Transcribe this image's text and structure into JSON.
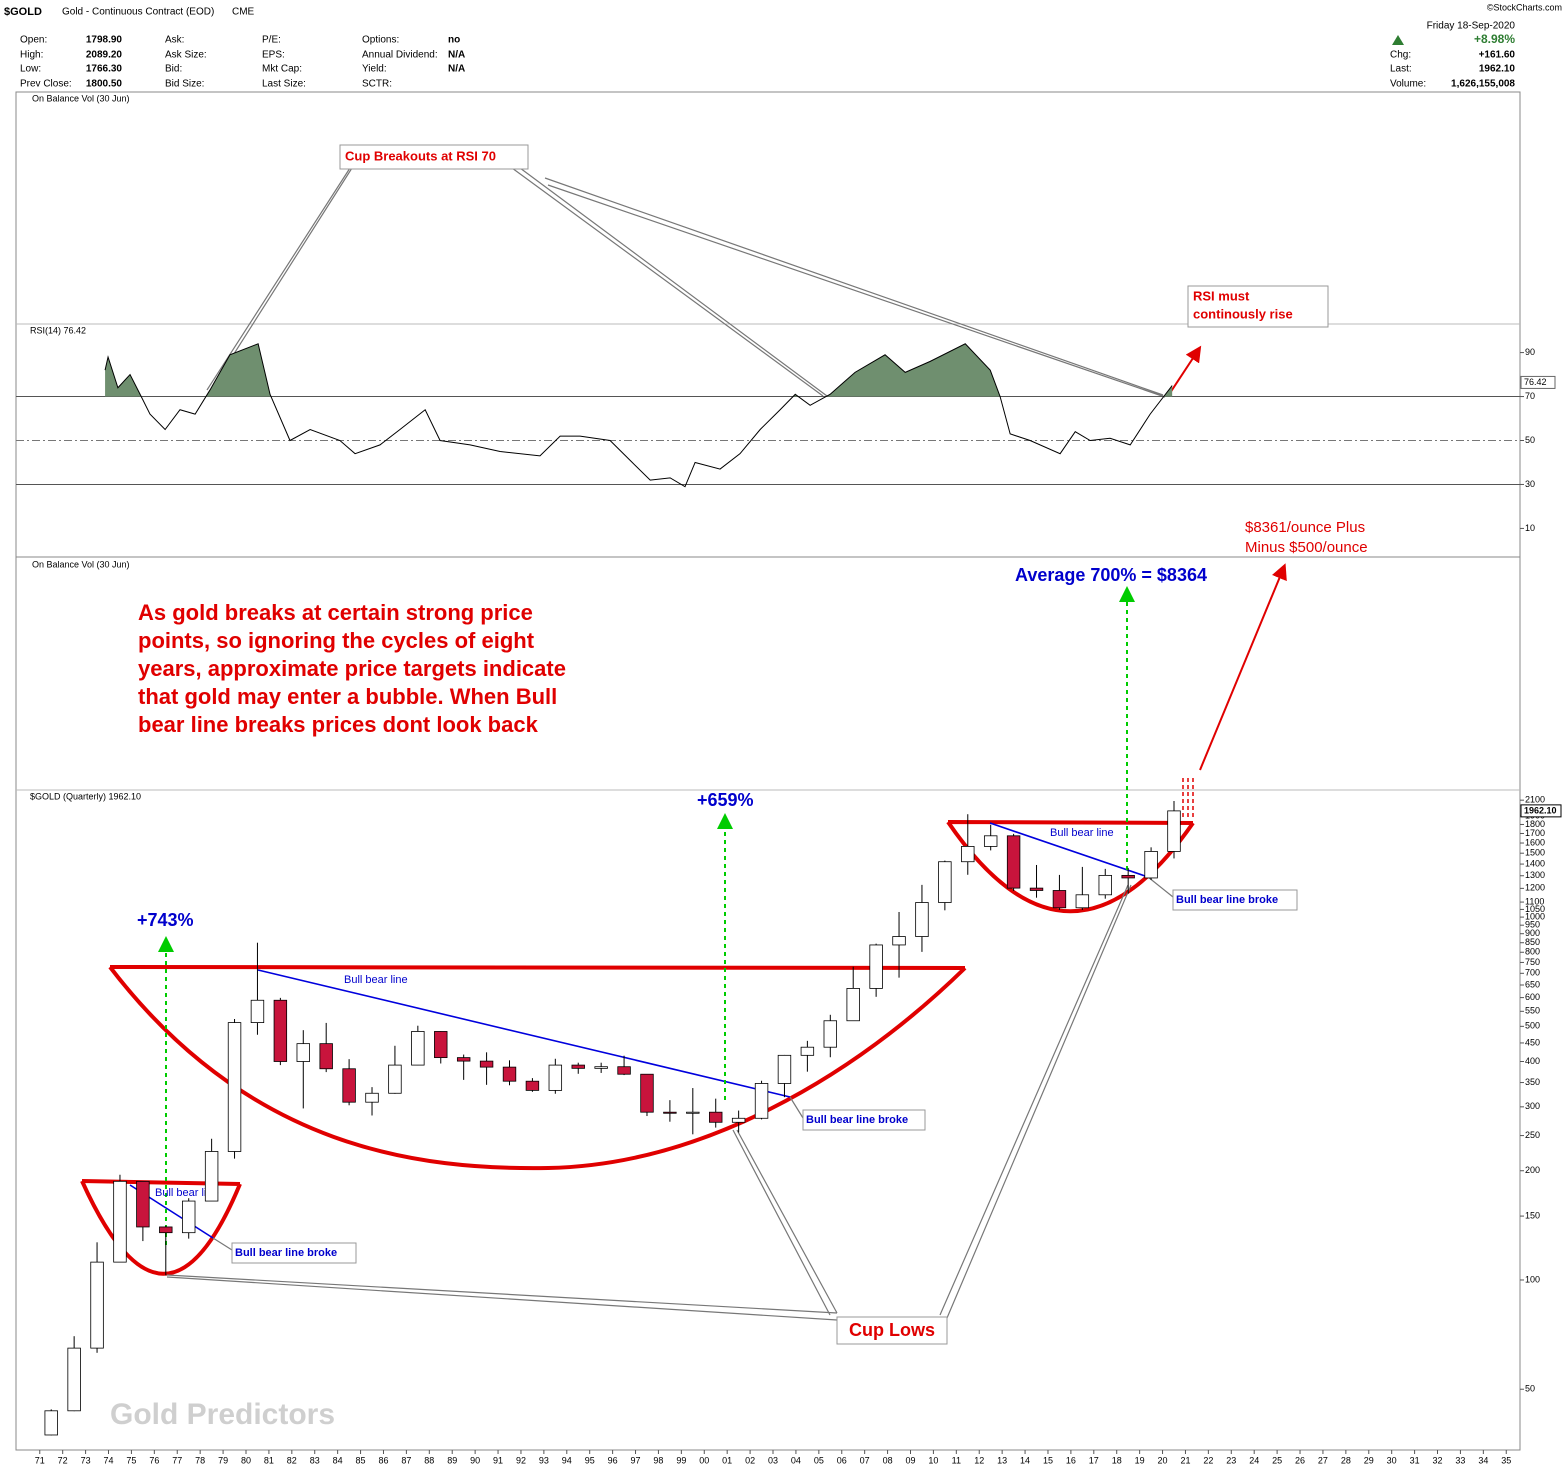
{
  "header": {
    "symbol": "$GOLD",
    "description": "Gold - Continuous Contract (EOD)",
    "exchange": "CME",
    "copyright": "©StockCharts.com",
    "date": "Friday  18-Sep-2020",
    "columns": [
      [
        {
          "label": "Open:",
          "value": "1798.90"
        },
        {
          "label": "High:",
          "value": "2089.20"
        },
        {
          "label": "Low:",
          "value": "1766.30"
        },
        {
          "label": "Prev Close:",
          "value": "1800.50"
        }
      ],
      [
        {
          "label": "Ask:"
        },
        {
          "label": "Ask Size:"
        },
        {
          "label": "Bid:"
        },
        {
          "label": "Bid Size:"
        }
      ],
      [
        {
          "label": "P/E:"
        },
        {
          "label": "EPS:"
        },
        {
          "label": "Mkt Cap:"
        },
        {
          "label": "Last Size:"
        }
      ],
      [
        {
          "label": "Options:",
          "value": "no"
        },
        {
          "label": "Annual Dividend:",
          "value": "N/A"
        },
        {
          "label": "Yield:",
          "value": "N/A"
        },
        {
          "label": "SCTR:"
        }
      ]
    ],
    "change_pct": "+8.98%",
    "right_rows": [
      {
        "label": "Chg:",
        "value": "+161.60"
      },
      {
        "label": "Last:",
        "value": "1962.10"
      },
      {
        "label": "Volume:",
        "value": "1,626,155,008"
      }
    ]
  },
  "panels": [
    "On Balance Vol (30 Jun)",
    "On Balance Vol (30 Jun)"
  ],
  "chart_data": [
    {
      "type": "line",
      "label": "RSI(14) 76.42",
      "color": "#000000",
      "fill_color": "#6f8f6f",
      "fill_above": 70,
      "xlim": [
        1970.05,
        2035.6
      ],
      "ylim": [
        -3,
        103
      ],
      "yticks": [
        10,
        30,
        50,
        70,
        90
      ],
      "reference_lines": [
        {
          "value": 70,
          "style": "solid"
        },
        {
          "value": 50,
          "style": "dashdot"
        },
        {
          "value": 30,
          "style": "solid"
        }
      ],
      "last_value": 76.42,
      "x": [
        1973.85,
        1973.98,
        1974.41,
        1974.94,
        1975.38,
        1975.81,
        1976.47,
        1977.12,
        1977.78,
        1978.43,
        1979.3,
        1980.53,
        1981.05,
        1981.92,
        1982.8,
        1984.1,
        1984.76,
        1985.85,
        1986.72,
        1987.82,
        1988.47,
        1989.78,
        1991.09,
        1992.83,
        1993.71,
        1994.58,
        1995.89,
        1996.76,
        1997.64,
        1998.51,
        1999.16,
        1999.6,
        2000.69,
        2001.56,
        2002.44,
        2003.31,
        2003.97,
        2004.62,
        2005.49,
        2006.58,
        2007.89,
        2008.77,
        2009.86,
        2011.39,
        2012.48,
        2012.91,
        2013.35,
        2014.22,
        2015.53,
        2016.19,
        2016.84,
        2017.71,
        2018.59,
        2019.46,
        2020.42
      ],
      "values": [
        82,
        88,
        74,
        80,
        71,
        62,
        55,
        64,
        62,
        73,
        89,
        94,
        71,
        50,
        55,
        50,
        44,
        48,
        55,
        64,
        50,
        48,
        45,
        43,
        52,
        52,
        50,
        41,
        32,
        33,
        29,
        40,
        37,
        44,
        55,
        64,
        71,
        66,
        71,
        81,
        89,
        81,
        86,
        94,
        82,
        70,
        53,
        50,
        44,
        54,
        50,
        51,
        48,
        62,
        75
      ]
    },
    {
      "type": "candlestick",
      "label": "$GOLD (Quarterly) 1962.10",
      "log_scale": true,
      "up_color": "#ffffff",
      "down_color": "#c8143c",
      "xlim": [
        1970.05,
        2035.6
      ],
      "ylim": [
        34,
        2240
      ],
      "yticks": [
        50,
        100,
        150,
        200,
        250,
        300,
        350,
        400,
        450,
        500,
        550,
        600,
        650,
        700,
        750,
        800,
        850,
        900,
        950,
        1000,
        1050,
        1100,
        1200,
        1300,
        1400,
        1500,
        1600,
        1700,
        1800,
        1900,
        2100
      ],
      "xticks": [
        {
          "value": 1971,
          "label": "71"
        },
        {
          "value": 1972,
          "label": "72"
        },
        {
          "value": 1973,
          "label": "73"
        },
        {
          "value": 1974,
          "label": "74"
        },
        {
          "value": 1975,
          "label": "75"
        },
        {
          "value": 1976,
          "label": "76"
        },
        {
          "value": 1977,
          "label": "77"
        },
        {
          "value": 1978,
          "label": "78"
        },
        {
          "value": 1979,
          "label": "79"
        },
        {
          "value": 1980,
          "label": "80"
        },
        {
          "value": 1981,
          "label": "81"
        },
        {
          "value": 1982,
          "label": "82"
        },
        {
          "value": 1983,
          "label": "83"
        },
        {
          "value": 1984,
          "label": "84"
        },
        {
          "value": 1985,
          "label": "85"
        },
        {
          "value": 1986,
          "label": "86"
        },
        {
          "value": 1987,
          "label": "87"
        },
        {
          "value": 1988,
          "label": "88"
        },
        {
          "value": 1989,
          "label": "89"
        },
        {
          "value": 1990,
          "label": "90"
        },
        {
          "value": 1991,
          "label": "91"
        },
        {
          "value": 1992,
          "label": "92"
        },
        {
          "value": 1993,
          "label": "93"
        },
        {
          "value": 1994,
          "label": "94"
        },
        {
          "value": 1995,
          "label": "95"
        },
        {
          "value": 1996,
          "label": "96"
        },
        {
          "value": 1997,
          "label": "97"
        },
        {
          "value": 1998,
          "label": "98"
        },
        {
          "value": 1999,
          "label": "99"
        },
        {
          "value": 2000,
          "label": "00"
        },
        {
          "value": 2001,
          "label": "01"
        },
        {
          "value": 2002,
          "label": "02"
        },
        {
          "value": 2003,
          "label": "03"
        },
        {
          "value": 2004,
          "label": "04"
        },
        {
          "value": 2005,
          "label": "05"
        },
        {
          "value": 2006,
          "label": "06"
        },
        {
          "value": 2007,
          "label": "07"
        },
        {
          "value": 2008,
          "label": "08"
        },
        {
          "value": 2009,
          "label": "09"
        },
        {
          "value": 2010,
          "label": "10"
        },
        {
          "value": 2011,
          "label": "11"
        },
        {
          "value": 2012,
          "label": "12"
        },
        {
          "value": 2013,
          "label": "13"
        },
        {
          "value": 2014,
          "label": "14"
        },
        {
          "value": 2015,
          "label": "15"
        },
        {
          "value": 2016,
          "label": "16"
        },
        {
          "value": 2017,
          "label": "17"
        },
        {
          "value": 2018,
          "label": "18"
        },
        {
          "value": 2019,
          "label": "19"
        },
        {
          "value": 2020,
          "label": "20"
        },
        {
          "value": 2021,
          "label": "21"
        },
        {
          "value": 2022,
          "label": "22"
        },
        {
          "value": 2023,
          "label": "23"
        },
        {
          "value": 2024,
          "label": "24"
        },
        {
          "value": 2025,
          "label": "25"
        },
        {
          "value": 2026,
          "label": "26"
        },
        {
          "value": 2027,
          "label": "27"
        },
        {
          "value": 2028,
          "label": "28"
        },
        {
          "value": 2029,
          "label": "29"
        },
        {
          "value": 2030,
          "label": "30"
        },
        {
          "value": 2031,
          "label": "31"
        },
        {
          "value": 2032,
          "label": "32"
        },
        {
          "value": 2033,
          "label": "33"
        },
        {
          "value": 2034,
          "label": "34"
        },
        {
          "value": 2035,
          "label": "35"
        }
      ],
      "last_value": 1962.1,
      "last_value_label": "1962.10",
      "x": [
        1971.5,
        1972.5,
        1973.5,
        1974.5,
        1975.5,
        1976.5,
        1977.5,
        1978.5,
        1979.5,
        1980.5,
        1981.5,
        1982.5,
        1983.5,
        1984.5,
        1985.5,
        1986.5,
        1987.5,
        1988.5,
        1989.5,
        1990.5,
        1991.5,
        1992.5,
        1993.5,
        1994.5,
        1995.5,
        1996.5,
        1997.5,
        1998.5,
        1999.5,
        2000.5,
        2001.5,
        2002.5,
        2003.5,
        2004.5,
        2005.5,
        2006.5,
        2007.5,
        2008.5,
        2009.5,
        2010.5,
        2011.5,
        2012.5,
        2013.5,
        2014.5,
        2015.5,
        2016.5,
        2017.5,
        2018.5,
        2019.5,
        2020.5
      ],
      "open": [
        37.4,
        43.6,
        64.9,
        112,
        187,
        140,
        135,
        165,
        226,
        512,
        590,
        400,
        448,
        382,
        309,
        327,
        391,
        484,
        410,
        401,
        386,
        353,
        333,
        391,
        383,
        387,
        369,
        290,
        288,
        290,
        272,
        279,
        348,
        416,
        438,
        518,
        636,
        838,
        884,
        1097,
        1421,
        1566,
        1675,
        1202,
        1184,
        1061,
        1152,
        1303,
        1282,
        1517
      ],
      "high": [
        44,
        70,
        127,
        195,
        187,
        141,
        168,
        245,
        524,
        850,
        599,
        488,
        511,
        406,
        340,
        442,
        502,
        485,
        418,
        424,
        403,
        360,
        407,
        397,
        397,
        415,
        369,
        313,
        338,
        316,
        293,
        354,
        417,
        456,
        538,
        730,
        845,
        1033,
        1227,
        1431,
        1921,
        1796,
        1696,
        1392,
        1307,
        1375,
        1358,
        1366,
        1557,
        2089
      ],
      "low": [
        37.3,
        43.5,
        63,
        112,
        128,
        103,
        130,
        165,
        216,
        474,
        391,
        297,
        374,
        303,
        284,
        326,
        390,
        395,
        356,
        345,
        344,
        330,
        326,
        370,
        372,
        367,
        283,
        273,
        252,
        263,
        255,
        277,
        319,
        375,
        411,
        518,
        603,
        681,
        802,
        1044,
        1308,
        1527,
        1180,
        1131,
        1046,
        1046,
        1124,
        1161,
        1266,
        1451
      ],
      "close": [
        43.6,
        64.9,
        112,
        187,
        140,
        135,
        165,
        226,
        512,
        590,
        400,
        448,
        382,
        309,
        327,
        391,
        484,
        410,
        401,
        386,
        353,
        333,
        391,
        383,
        387,
        369,
        290,
        288,
        290,
        272,
        279,
        348,
        416,
        438,
        518,
        636,
        838,
        884,
        1097,
        1421,
        1566,
        1675,
        1202,
        1184,
        1061,
        1152,
        1303,
        1282,
        1517,
        1962
      ]
    }
  ],
  "annotations": {
    "cup_breakouts": "Cup Breakouts at RSI 70",
    "rsi_must": [
      "RSI must",
      "continously rise"
    ],
    "target": [
      "$8361/ounce Plus",
      "Minus $500/ounce"
    ],
    "average": "Average 700% = $8364",
    "commentary": [
      "As gold breaks at certain strong price",
      "points, so ignoring the cycles of eight",
      "years, approximate price targets indicate",
      "that gold may enter a bubble. When Bull",
      "bear line breaks prices dont look back"
    ],
    "gain_1": "+743%",
    "gain_2": "+659%",
    "bull_bear_line": [
      "Bull bear line",
      "Bull bear line",
      "Bull bear line"
    ],
    "bull_bear_line_broke": [
      "Bull bear line broke",
      "Bull bear line broke",
      "Bull bear line broke"
    ],
    "cup_lows": "Cup Lows",
    "watermark": "Gold Predictors"
  }
}
